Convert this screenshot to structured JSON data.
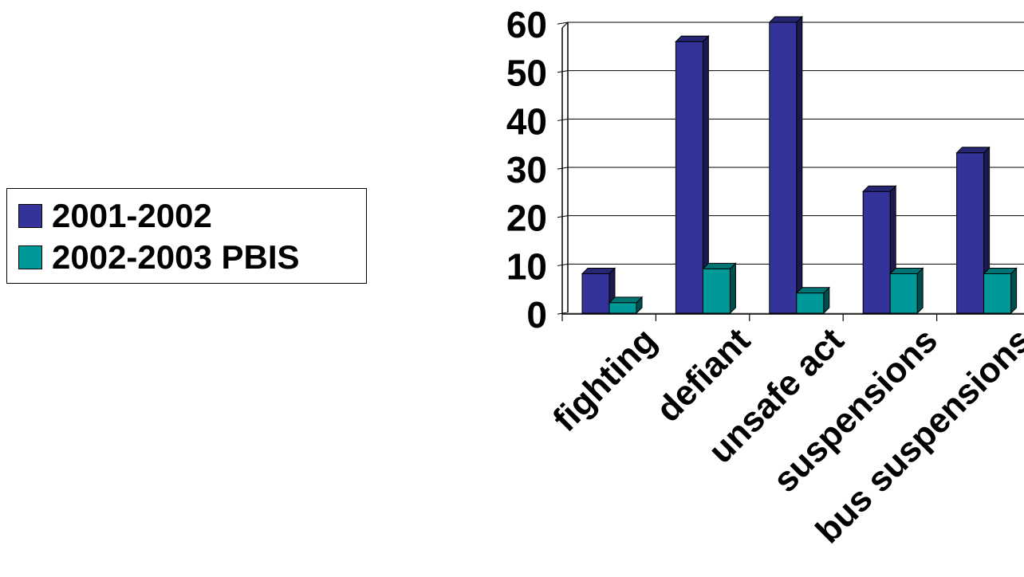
{
  "chart_data": {
    "type": "bar",
    "categories": [
      "fighting",
      "defiant",
      "unsafe act",
      "suspensions",
      "bus suspensions"
    ],
    "series": [
      {
        "name": "2001-2002",
        "values": [
          8,
          56,
          60,
          25,
          33
        ],
        "color": "#333399"
      },
      {
        "name": "2002-2003 PBIS",
        "values": [
          2,
          9,
          4,
          8,
          8
        ],
        "color": "#009999"
      }
    ],
    "ylim": [
      0,
      60
    ],
    "yticks": [
      "0",
      "10",
      "20",
      "30",
      "40",
      "50",
      "60"
    ],
    "grid": true,
    "legend": "left",
    "title": "",
    "xlabel": "",
    "ylabel": ""
  }
}
